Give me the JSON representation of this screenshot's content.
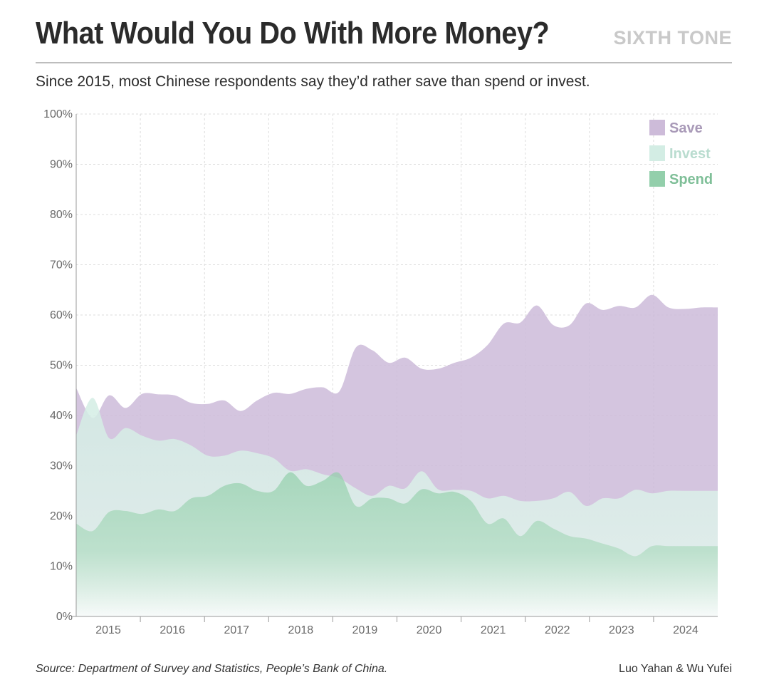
{
  "header": {
    "title": "What Would You Do With More Money?",
    "brand": "SIXTH TONE",
    "subtitle": "Since 2015, most Chinese respondents say they’d rather save than spend or invest."
  },
  "footer": {
    "source": "Source: Department of Survey and Statistics, People’s Bank of China.",
    "credit": "Luo Yahan & Wu Yufei"
  },
  "colors": {
    "save": "#cdbbd9",
    "invest": "#d3ede4",
    "spend": "#93cfab",
    "grid": "#dcdcdc",
    "axis": "#9a9a9a"
  },
  "chart_data": {
    "type": "area",
    "title": "What Would You Do With More Money?",
    "xlabel": "",
    "ylabel": "",
    "ylim": [
      0,
      100
    ],
    "yticks": [
      "0%",
      "10%",
      "20%",
      "30%",
      "40%",
      "50%",
      "60%",
      "70%",
      "80%",
      "90%",
      "100%"
    ],
    "xticks": [
      "2015",
      "2016",
      "2017",
      "2018",
      "2019",
      "2020",
      "2021",
      "2022",
      "2023",
      "2024"
    ],
    "grid": true,
    "legend_position": "top-right",
    "x": [
      "2014Q4",
      "2015Q1",
      "2015Q2",
      "2015Q3",
      "2015Q4",
      "2016Q1",
      "2016Q2",
      "2016Q3",
      "2016Q4",
      "2017Q1",
      "2017Q2",
      "2017Q3",
      "2017Q4",
      "2018Q1",
      "2018Q2",
      "2018Q3",
      "2018Q4",
      "2019Q1",
      "2019Q2",
      "2019Q3",
      "2019Q4",
      "2020Q1",
      "2020Q2",
      "2020Q3",
      "2020Q4",
      "2021Q1",
      "2021Q2",
      "2021Q3",
      "2021Q4",
      "2022Q1",
      "2022Q2",
      "2022Q3",
      "2022Q4",
      "2023Q1",
      "2023Q2",
      "2023Q3",
      "2023Q4",
      "2024Q1",
      "2024Q2",
      "2024Q3"
    ],
    "series": [
      {
        "name": "Save",
        "values": [
          45.5,
          39.5,
          44.0,
          41.5,
          44.3,
          44.2,
          44.0,
          42.5,
          42.3,
          43.0,
          40.9,
          43.0,
          44.5,
          44.3,
          45.3,
          45.6,
          44.8,
          53.5,
          53.0,
          50.5,
          51.5,
          49.3,
          49.3,
          50.5,
          51.5,
          54.0,
          58.3,
          58.5,
          61.9,
          58.0,
          58.0,
          62.3,
          61.0,
          61.8,
          61.5,
          64.0,
          61.5,
          61.2,
          61.5,
          61.5
        ]
      },
      {
        "name": "Invest",
        "values": [
          36.0,
          43.5,
          35.5,
          37.5,
          36.0,
          35.0,
          35.3,
          34.0,
          32.0,
          32.0,
          33.0,
          32.5,
          31.5,
          29.0,
          29.3,
          28.3,
          27.5,
          25.5,
          24.0,
          26.0,
          25.5,
          28.9,
          25.3,
          25.2,
          25.0,
          23.5,
          24.0,
          23.0,
          23.0,
          23.5,
          24.8,
          22.0,
          23.5,
          23.5,
          25.2,
          24.5,
          25.0,
          25.0,
          25.0,
          25.0
        ]
      },
      {
        "name": "Spend",
        "values": [
          18.5,
          17.0,
          20.8,
          21.0,
          20.4,
          21.3,
          21.0,
          23.5,
          24.0,
          26.0,
          26.5,
          25.0,
          25.0,
          28.7,
          26.0,
          27.0,
          28.5,
          22.0,
          23.5,
          23.5,
          22.5,
          25.3,
          24.5,
          24.8,
          23.0,
          18.5,
          19.5,
          16.0,
          19.0,
          17.5,
          16.0,
          15.5,
          14.5,
          13.5,
          12.0,
          14.0,
          14.0,
          14.0,
          14.0,
          14.0
        ]
      }
    ]
  }
}
